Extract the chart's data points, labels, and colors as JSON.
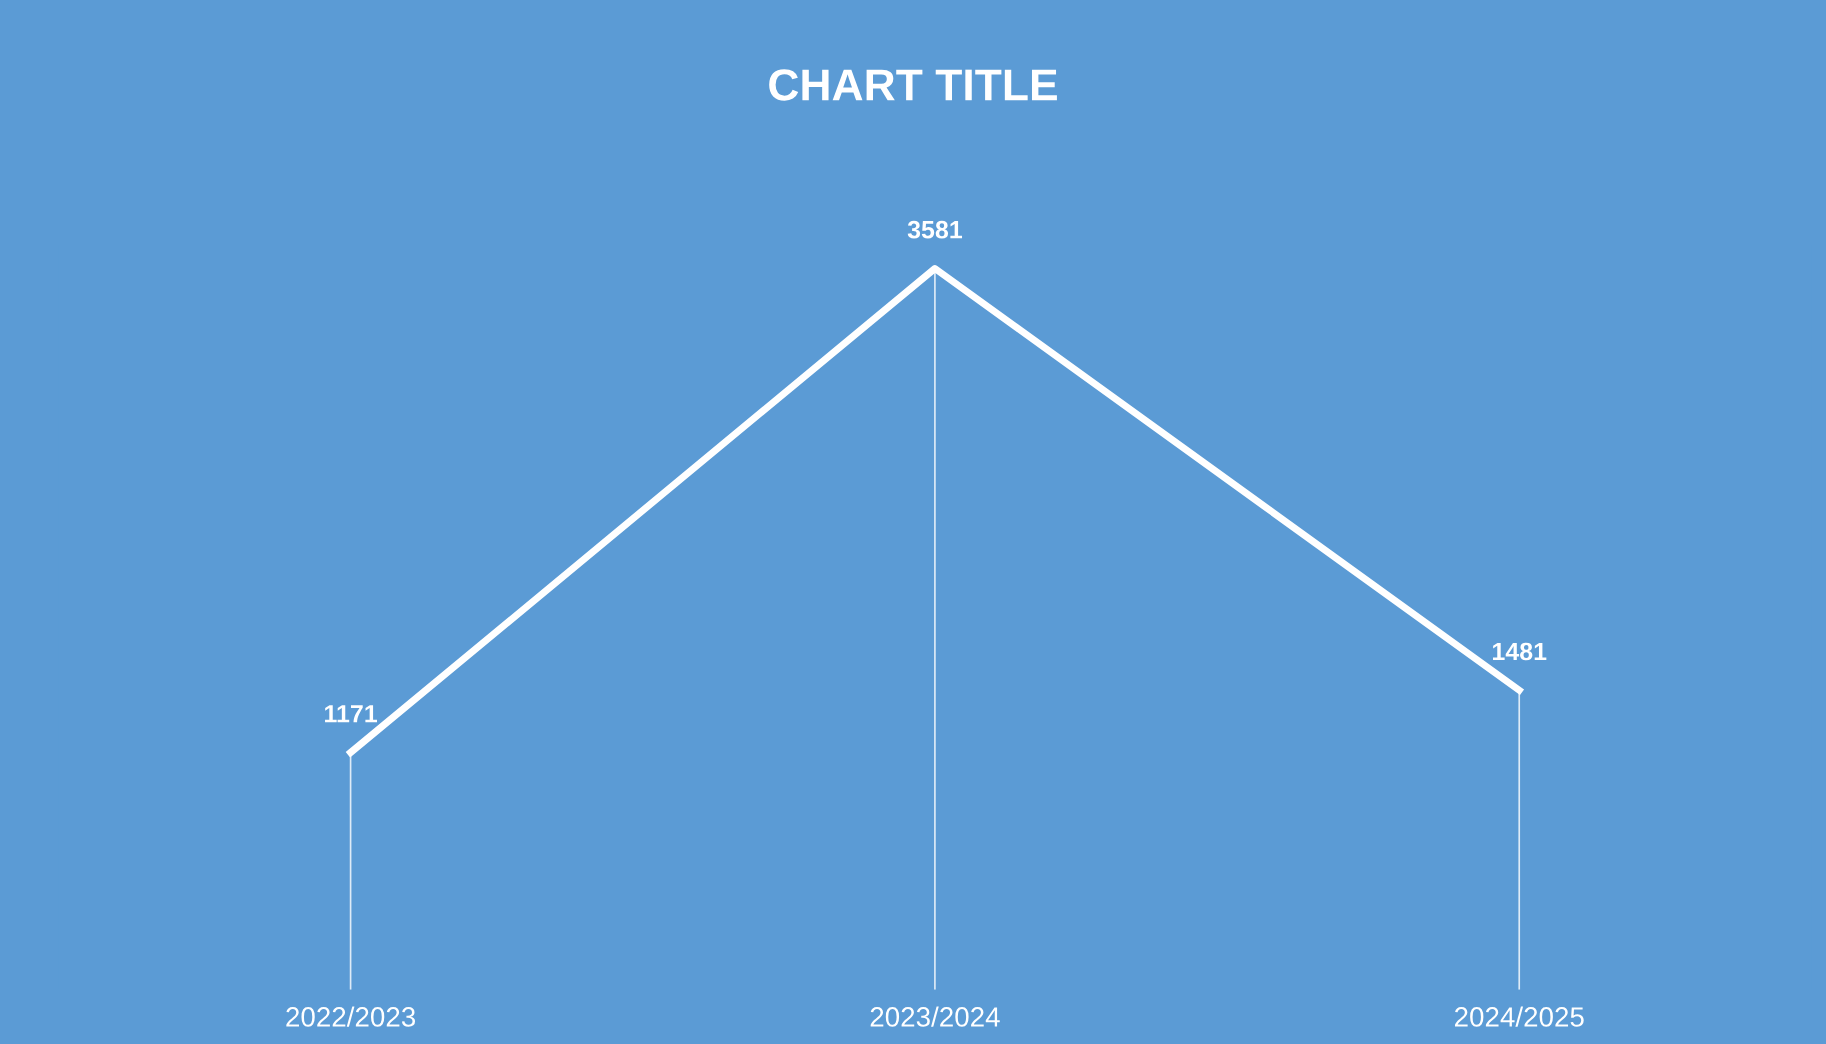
{
  "chart_data": {
    "type": "line",
    "title": "CHART TITLE",
    "categories": [
      "2022/2023",
      "2023/2024",
      "2024/2025"
    ],
    "series": [
      {
        "color": "#ffffff",
        "values": [
          1171,
          3581,
          1481
        ]
      }
    ],
    "data_labels": true,
    "line_style": "solid"
  }
}
